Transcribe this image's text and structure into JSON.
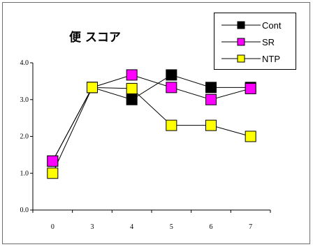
{
  "chart_data": {
    "type": "line",
    "title": "便 スコア",
    "categories": [
      "0",
      "3",
      "4",
      "5",
      "6",
      "7"
    ],
    "ylim": [
      0.0,
      4.0
    ],
    "yticks": [
      "0.0",
      "1.0",
      "2.0",
      "3.0",
      "4.0"
    ],
    "grid": false,
    "legend_position": "top-right",
    "series": [
      {
        "name": "Cont",
        "color": "#000000",
        "values": [
          1.33,
          3.33,
          3.0,
          3.67,
          3.33,
          3.33
        ]
      },
      {
        "name": "SR",
        "color": "#ff00ff",
        "values": [
          1.33,
          3.33,
          3.67,
          3.33,
          3.0,
          3.3
        ]
      },
      {
        "name": "NTP",
        "color": "#ffff00",
        "values": [
          1.0,
          3.33,
          3.3,
          2.3,
          2.3,
          2.0
        ]
      }
    ]
  }
}
